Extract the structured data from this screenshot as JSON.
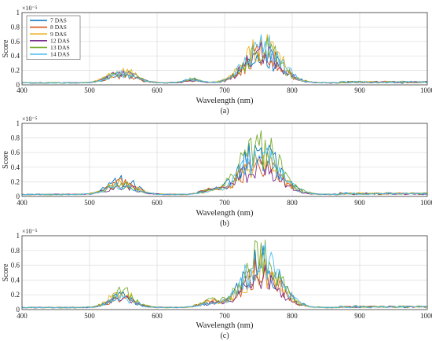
{
  "chart_data": [
    {
      "type": "line",
      "caption": "(a)",
      "xlabel": "Wavelength (nm)",
      "ylabel": "Score",
      "exponent": "×10⁻⁵",
      "xlim": [
        400,
        1000
      ],
      "ylim": [
        0,
        1
      ],
      "xticks": [
        400,
        500,
        600,
        700,
        800,
        900,
        1000
      ],
      "yticks": [
        0,
        0.2,
        0.4,
        0.6,
        0.8,
        1
      ],
      "grid": true,
      "legend": "top-left",
      "peaks": [
        {
          "center": 548,
          "width": 20,
          "heights": [
            0.2,
            0.14,
            0.24,
            0.18,
            0.22,
            0.17
          ]
        },
        {
          "center": 652,
          "width": 12,
          "heights": [
            0.06,
            0.05,
            0.05,
            0.05,
            0.08,
            0.06
          ]
        },
        {
          "center": 757,
          "width": 26,
          "heights": [
            0.52,
            0.58,
            0.72,
            0.6,
            0.65,
            0.7
          ]
        }
      ],
      "series": [
        {
          "name": "7 DAS",
          "color": "#0072BD"
        },
        {
          "name": "8 DAS",
          "color": "#D95319"
        },
        {
          "name": "9 DAS",
          "color": "#EDB120"
        },
        {
          "name": "12 DAS",
          "color": "#7E2F8E"
        },
        {
          "name": "13 DAS",
          "color": "#77AC30"
        },
        {
          "name": "14 DAS",
          "color": "#4DBEEE"
        }
      ]
    },
    {
      "type": "line",
      "caption": "(b)",
      "xlabel": "Wavelength (nm)",
      "ylabel": "Score",
      "exponent": "×10⁻⁵",
      "xlim": [
        400,
        1000
      ],
      "ylim": [
        0,
        1
      ],
      "xticks": [
        400,
        500,
        600,
        700,
        800,
        900,
        1000
      ],
      "yticks": [
        0,
        0.2,
        0.4,
        0.6,
        0.8,
        1
      ],
      "grid": true,
      "peaks": [
        {
          "center": 548,
          "width": 20,
          "heights": [
            0.28,
            0.22,
            0.25,
            0.18,
            0.2,
            0.18
          ]
        },
        {
          "center": 680,
          "width": 14,
          "heights": [
            0.08,
            0.1,
            0.06,
            0.07,
            0.07,
            0.06
          ]
        },
        {
          "center": 752,
          "width": 28,
          "heights": [
            0.85,
            0.62,
            0.65,
            0.58,
            1.0,
            0.75
          ]
        }
      ],
      "series": [
        {
          "name": "7 DAS",
          "color": "#0072BD"
        },
        {
          "name": "8 DAS",
          "color": "#D95319"
        },
        {
          "name": "9 DAS",
          "color": "#EDB120"
        },
        {
          "name": "12 DAS",
          "color": "#7E2F8E"
        },
        {
          "name": "13 DAS",
          "color": "#77AC30"
        },
        {
          "name": "14 DAS",
          "color": "#4DBEEE"
        }
      ]
    },
    {
      "type": "line",
      "caption": "(c)",
      "xlabel": "Wavelength (nm)",
      "ylabel": "Score",
      "exponent": "×10⁻⁵",
      "xlim": [
        400,
        1000
      ],
      "ylim": [
        0,
        1
      ],
      "xticks": [
        400,
        500,
        600,
        700,
        800,
        900,
        1000
      ],
      "yticks": [
        0,
        0.2,
        0.4,
        0.6,
        0.8,
        1
      ],
      "grid": true,
      "peaks": [
        {
          "center": 548,
          "width": 18,
          "heights": [
            0.22,
            0.18,
            0.28,
            0.2,
            0.3,
            0.2
          ]
        },
        {
          "center": 680,
          "width": 16,
          "heights": [
            0.08,
            0.12,
            0.1,
            0.08,
            0.12,
            0.07
          ]
        },
        {
          "center": 755,
          "width": 26,
          "heights": [
            0.95,
            0.72,
            0.75,
            0.65,
            1.0,
            0.92
          ]
        }
      ],
      "series": [
        {
          "name": "7 DAS",
          "color": "#0072BD"
        },
        {
          "name": "8 DAS",
          "color": "#D95319"
        },
        {
          "name": "9 DAS",
          "color": "#EDB120"
        },
        {
          "name": "12 DAS",
          "color": "#7E2F8E"
        },
        {
          "name": "13 DAS",
          "color": "#77AC30"
        },
        {
          "name": "14 DAS",
          "color": "#4DBEEE"
        }
      ]
    }
  ]
}
